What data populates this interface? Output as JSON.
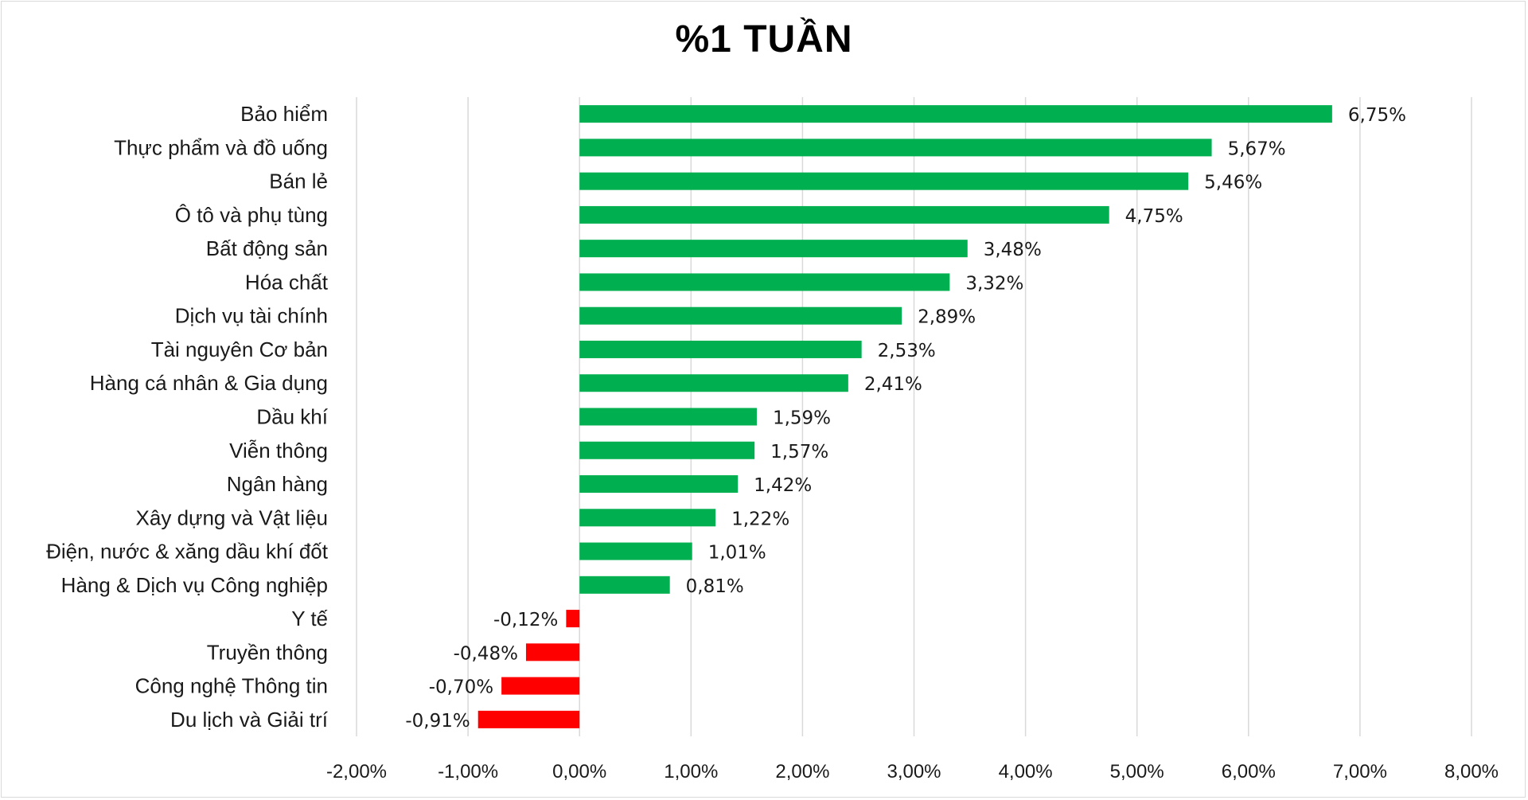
{
  "chart_data": {
    "type": "bar",
    "orientation": "horizontal",
    "title": "%1 TUẦN",
    "xlabel": "",
    "ylabel": "",
    "xlim": [
      -2,
      8
    ],
    "grid": true,
    "categories": [
      "Bảo hiểm",
      "Thực phẩm và đồ uống",
      "Bán lẻ",
      "Ô tô và phụ tùng",
      "Bất động sản",
      "Hóa chất",
      "Dịch vụ tài chính",
      "Tài nguyên Cơ bản",
      "Hàng cá nhân & Gia dụng",
      "Dầu khí",
      "Viễn thông",
      "Ngân hàng",
      "Xây dựng và Vật liệu",
      "Điện, nước & xăng dầu khí đốt",
      "Hàng & Dịch vụ Công nghiệp",
      "Y tế",
      "Truyền thông",
      "Công nghệ Thông tin",
      "Du lịch và Giải trí"
    ],
    "values": [
      6.75,
      5.67,
      5.46,
      4.75,
      3.48,
      3.32,
      2.89,
      2.53,
      2.41,
      1.59,
      1.57,
      1.42,
      1.22,
      1.01,
      0.81,
      -0.12,
      -0.48,
      -0.7,
      -0.91
    ],
    "value_labels": [
      "6,75%",
      "5,67%",
      "5,46%",
      "4,75%",
      "3,48%",
      "3,32%",
      "2,89%",
      "2,53%",
      "2,41%",
      "1,59%",
      "1,57%",
      "1,42%",
      "1,22%",
      "1,01%",
      "0,81%",
      "-0,12%",
      "-0,48%",
      "-0,70%",
      "-0,91%"
    ],
    "ticks": [
      -2,
      -1,
      0,
      1,
      2,
      3,
      4,
      5,
      6,
      7,
      8
    ],
    "tick_labels": [
      "-2,00%",
      "-1,00%",
      "0,00%",
      "1,00%",
      "2,00%",
      "3,00%",
      "4,00%",
      "5,00%",
      "6,00%",
      "7,00%",
      "8,00%"
    ],
    "colors": {
      "positive": "#00b050",
      "negative": "#ff0000",
      "grid": "#d9d9d9"
    }
  }
}
